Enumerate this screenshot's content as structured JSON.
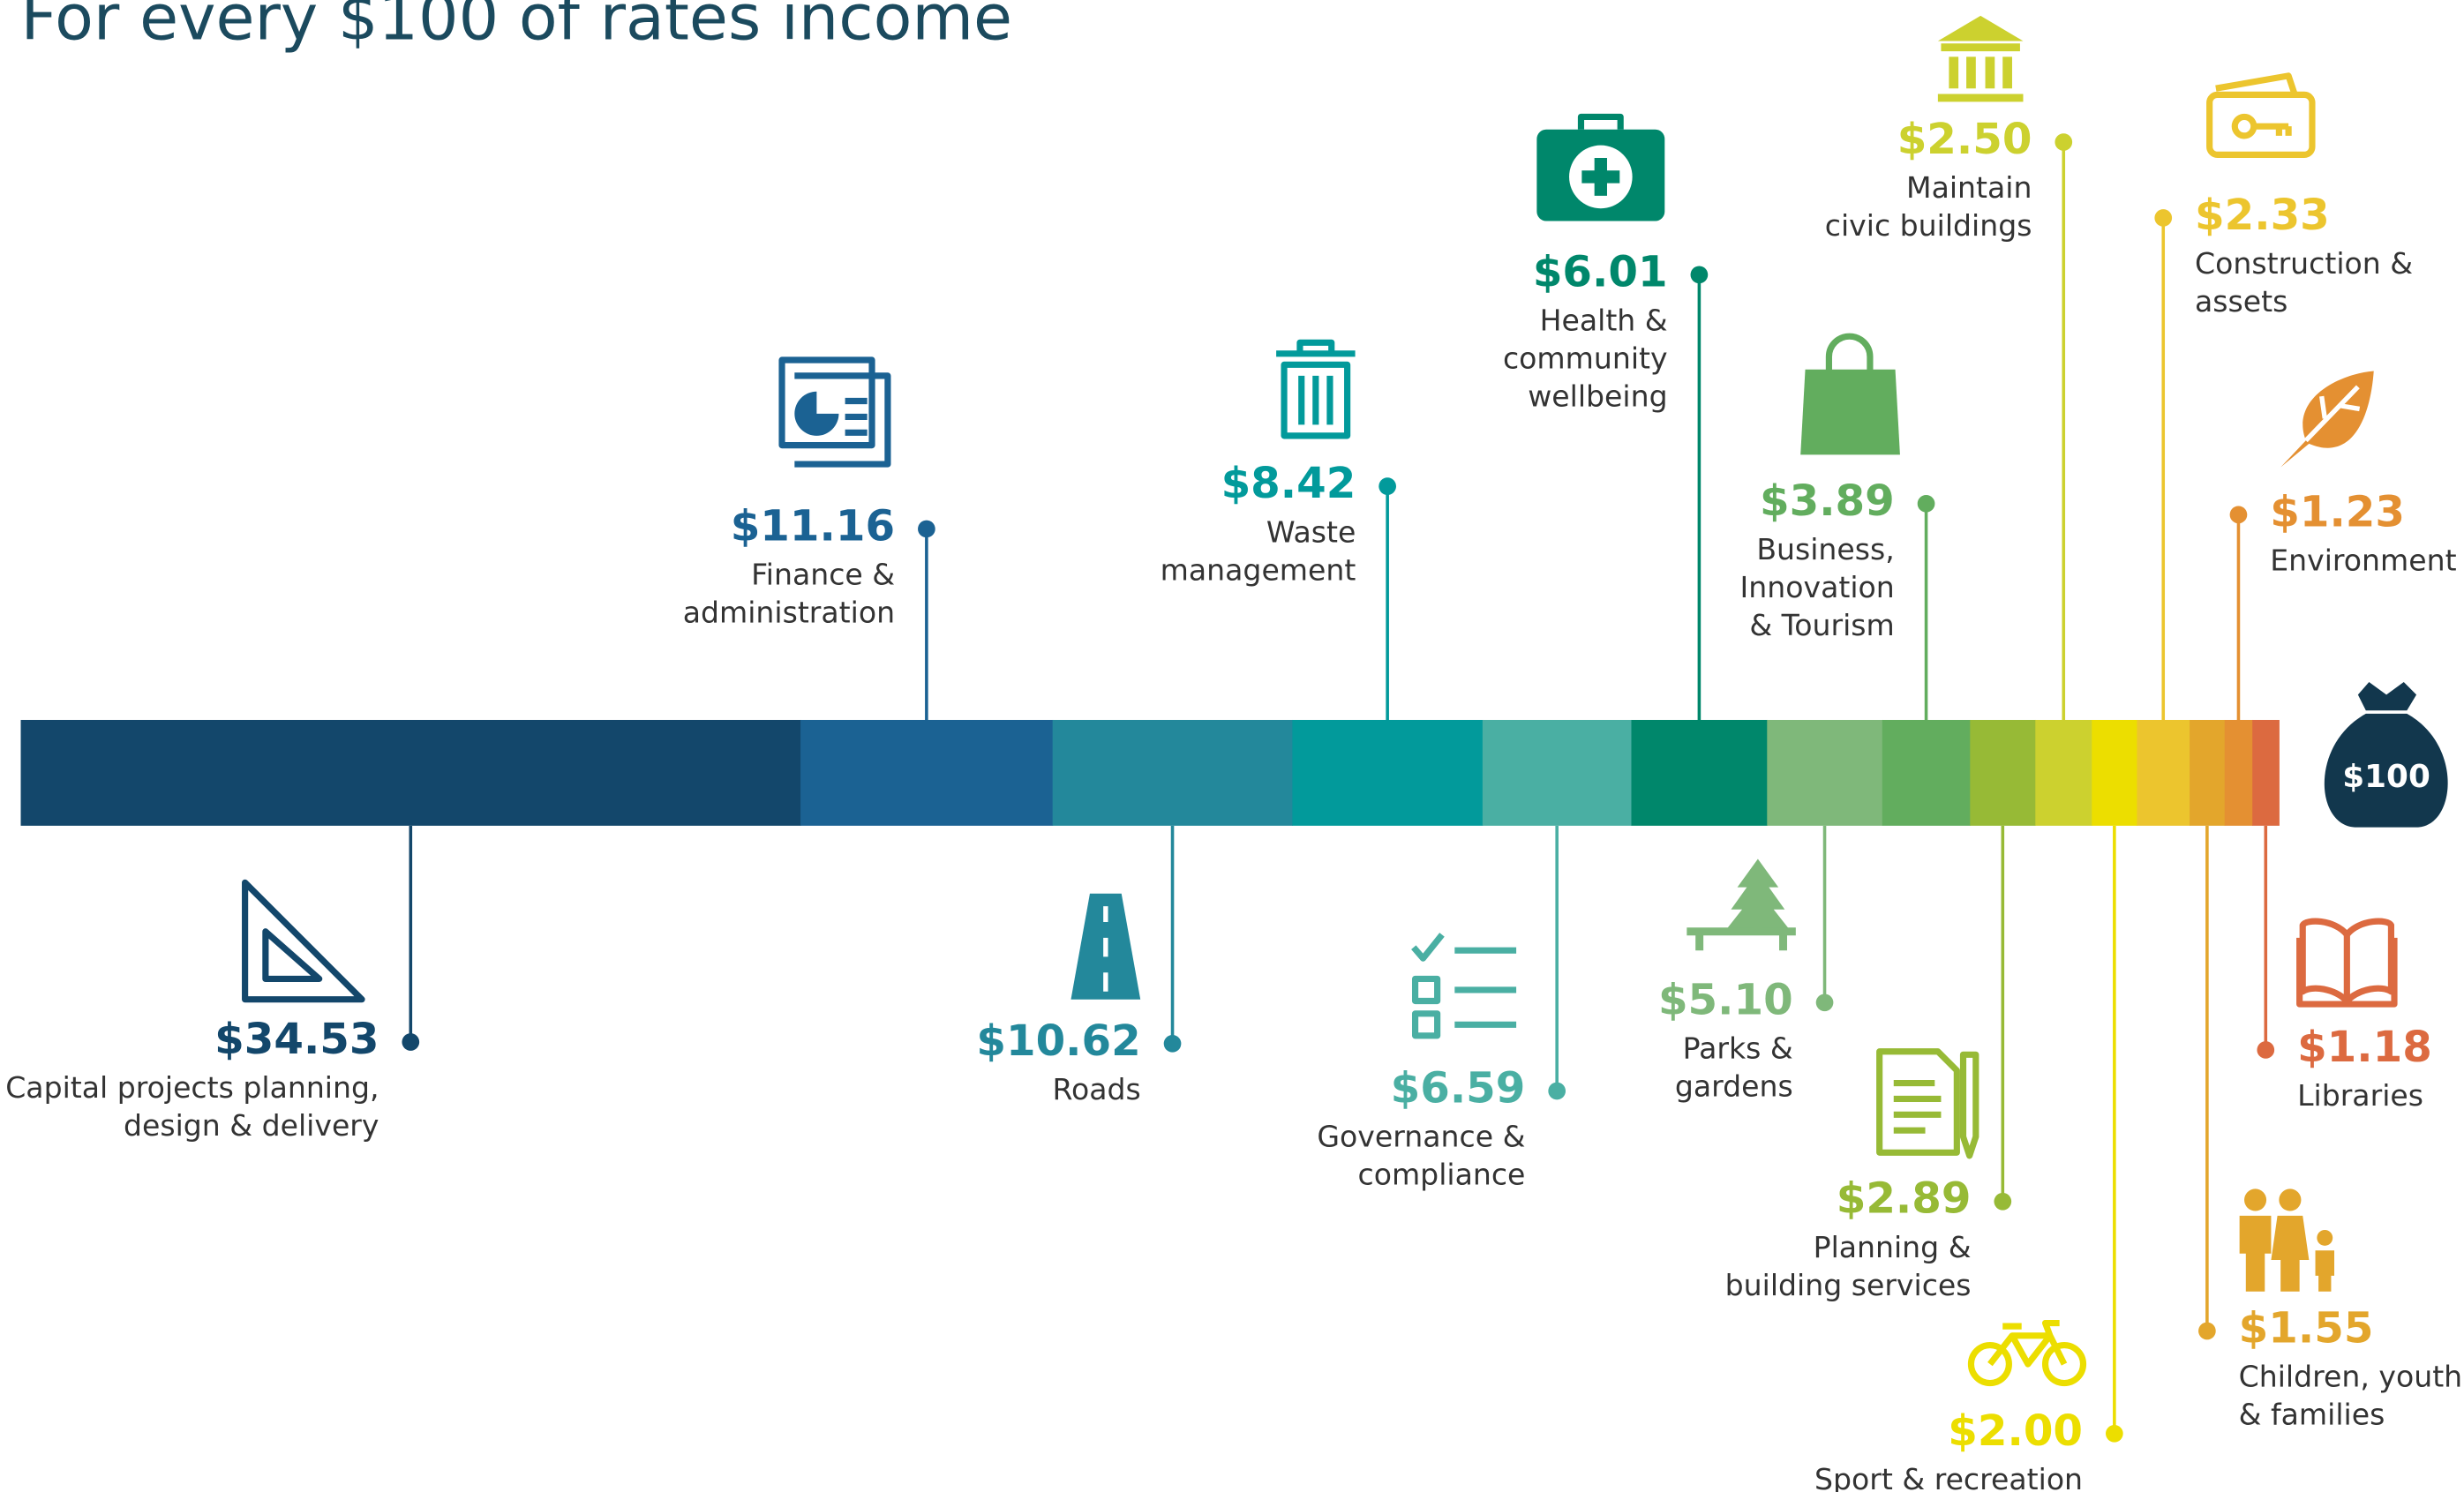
{
  "chart_data": {
    "type": "stacked_bar",
    "title": "For every $100 of rates income",
    "total_label": "$100",
    "xlim": [
      0,
      100
    ],
    "categories": [
      [
        "Capital projects planning,",
        "design & delivery"
      ],
      [
        "Finance &",
        "administration"
      ],
      [
        "Roads"
      ],
      [
        "Waste",
        "management"
      ],
      [
        "Governance &",
        "compliance"
      ],
      [
        "Health &",
        "community",
        "wellbeing"
      ],
      [
        "Parks &",
        "gardens"
      ],
      [
        "Business,",
        "Innovation",
        "& Tourism"
      ],
      [
        "Planning &",
        "building services"
      ],
      [
        "Maintain",
        "civic buildings"
      ],
      [
        "Sport & recreation"
      ],
      [
        "Construction &",
        "assets"
      ],
      [
        "Children, youth",
        "& families"
      ],
      [
        "Environment"
      ],
      [
        "Libraries"
      ]
    ],
    "values": [
      34.53,
      11.16,
      10.62,
      8.42,
      6.59,
      6.01,
      5.1,
      3.89,
      2.89,
      2.5,
      2.0,
      2.33,
      1.55,
      1.23,
      1.18
    ],
    "value_labels": [
      "$34.53",
      "$11.16",
      "$10.62",
      "$8.42",
      "$6.59",
      "$6.01",
      "$5.10",
      "$3.89",
      "$2.89",
      "$2.50",
      "$2.00",
      "$2.33",
      "$1.55",
      "$1.23",
      "$1.18"
    ],
    "colors": [
      "#13476b",
      "#1b6293",
      "#23889b",
      "#029a9b",
      "#4aafa3",
      "#00876b",
      "#7fb87a",
      "#62ad5e",
      "#97ba36",
      "#ccd12f",
      "#ecde00",
      "#ecc52e",
      "#e3a62c",
      "#e49032",
      "#dc6a40"
    ]
  }
}
